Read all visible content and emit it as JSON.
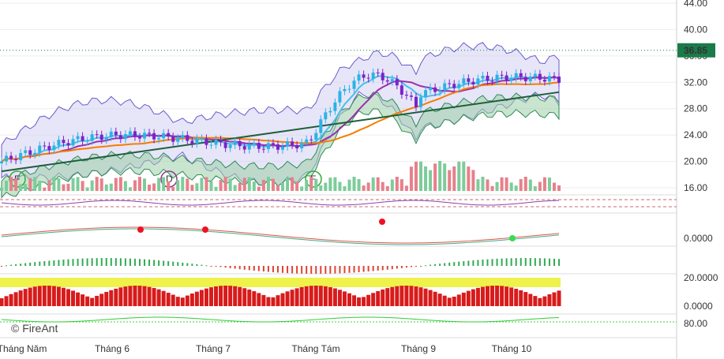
{
  "watermark": "© FireAnt",
  "colors": {
    "up": "#26a69a",
    "down": "#ef5350",
    "candle_up": "#2bb3e6",
    "candle_down": "#7b22c9",
    "ma_fast": "#49c0e8",
    "ma_mid": "#9b2fae",
    "ma_slow": "#f57c00",
    "ma_long": "#1e5f3a",
    "price_label_bg": "#1b7a4a",
    "cloud_fill": "#9ccfa7",
    "band_fill": "#c9c6f0",
    "volume_up": "#7ccc9a",
    "volume_down": "#e7808a",
    "buy_signal": "#33dd55",
    "sell_signal": "#ee1122"
  },
  "chart_data": [
    {
      "type": "candlestick",
      "panel": "price",
      "ylim": [
        16,
        44
      ],
      "yticks": [
        "16.00",
        "20.00",
        "24.00",
        "28.00",
        "32.00",
        "36.00",
        "40.00",
        "44.00"
      ],
      "last_price": "36.85",
      "x_labels": [
        "Tháng Năm",
        "Tháng 6",
        "Tháng 7",
        "Tháng Tám",
        "Tháng 9",
        "Tháng 10"
      ],
      "event_markers": [
        "F",
        "D",
        "F"
      ],
      "grid": true
    },
    {
      "type": "bar",
      "panel": "volume",
      "description_level": "volume shown as bars at bottom of price panel"
    },
    {
      "type": "line",
      "panel": "oscillator-1",
      "yticks": []
    },
    {
      "type": "line",
      "panel": "macd",
      "yticks": [
        "0.0000"
      ]
    },
    {
      "type": "bar",
      "panel": "histogram",
      "yticks": []
    },
    {
      "type": "bar",
      "panel": "stacked-indicator",
      "yticks": [
        "20.0000",
        "0.0000"
      ]
    },
    {
      "type": "line",
      "panel": "bottom-indicator",
      "yticks": [
        "80.00"
      ]
    }
  ]
}
